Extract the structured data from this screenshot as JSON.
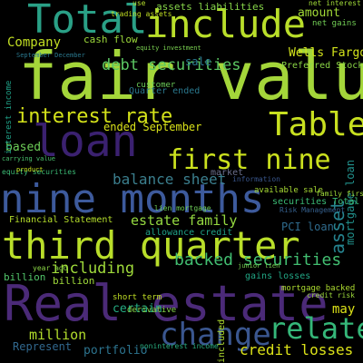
{
  "words": [
    {
      "id": "fair-value",
      "text": "fair value",
      "color": "#a4d63a"
    },
    {
      "id": "nine-months",
      "text": "nine months",
      "color": "#3d5a9c"
    },
    {
      "id": "real-estate",
      "text": "Real estate",
      "color": "#4b2a78"
    },
    {
      "id": "third-quarter",
      "text": "third quarter",
      "color": "#b9de2a"
    },
    {
      "id": "total",
      "text": "Total",
      "color": "#2aa086"
    },
    {
      "id": "include",
      "text": "include",
      "color": "#b9de2a"
    },
    {
      "id": "loan",
      "text": "loan",
      "color": "#3b2170"
    },
    {
      "id": "table",
      "text": "Table",
      "color": "#c8e020"
    },
    {
      "id": "first-nine",
      "text": "first nine",
      "color": "#cbe11e"
    },
    {
      "id": "change",
      "text": "change",
      "color": "#3a568f"
    },
    {
      "id": "related",
      "text": "related",
      "color": "#35b779"
    },
    {
      "id": "interest-rate",
      "text": "interest rate",
      "color": "#d4e21a"
    },
    {
      "id": "backed-securities",
      "text": "backed securities",
      "color": "#42be71"
    },
    {
      "id": "debt-securities",
      "text": "debt securities",
      "color": "#5cc863"
    },
    {
      "id": "balance-sheet",
      "text": "balance sheet",
      "color": "#3b7f8e"
    },
    {
      "id": "estate-family",
      "text": "estate family",
      "color": "#94d840"
    },
    {
      "id": "including",
      "text": "including",
      "color": "#9fda3a"
    },
    {
      "id": "credit-losses",
      "text": "credit losses",
      "color": "#dce319"
    },
    {
      "id": "million",
      "text": "million",
      "color": "#b2dd2c"
    },
    {
      "id": "portfolio",
      "text": "portfolio",
      "color": "#2c738e"
    },
    {
      "id": "company",
      "text": "Company",
      "color": "#c2df23"
    },
    {
      "id": "amount",
      "text": "amount",
      "color": "#a2da37"
    },
    {
      "id": "wells-fargo",
      "text": "Wells Fargo",
      "color": "#d2e21b"
    },
    {
      "id": "based",
      "text": "based",
      "color": "#6ece58"
    },
    {
      "id": "ended-september",
      "text": "ended September",
      "color": "#d9e219"
    },
    {
      "id": "financial-statement",
      "text": "Financial Statement",
      "color": "#b5de2b"
    },
    {
      "id": "assets-liabilities",
      "text": "assets liabilities",
      "color": "#86d549"
    },
    {
      "id": "cash-flow",
      "text": "cash flow",
      "color": "#9dd93b"
    },
    {
      "id": "preferred-stock",
      "text": "Preferred Stock",
      "color": "#8bd646"
    },
    {
      "id": "asset",
      "text": "asset",
      "color": "#26838f"
    },
    {
      "id": "certain",
      "text": "certain",
      "color": "#25ac82"
    },
    {
      "id": "pci-loan",
      "text": "PCI loan",
      "color": "#2f6c8e"
    },
    {
      "id": "may",
      "text": "may",
      "color": "#dde318"
    },
    {
      "id": "represent",
      "text": "Represent",
      "color": "#31688e"
    },
    {
      "id": "billion",
      "text": "billion",
      "color": "#52c569"
    },
    {
      "id": "billion-2",
      "text": "billion",
      "color": "#9fda3a"
    },
    {
      "id": "quarter-ended",
      "text": "Quarter ended",
      "color": "#2a788e"
    },
    {
      "id": "mortgage-loan",
      "text": "mortgage loan",
      "color": "#21918c"
    },
    {
      "id": "market",
      "text": "market",
      "color": "#6b6f8c"
    },
    {
      "id": "customer",
      "text": "customer",
      "color": "#6cce59"
    },
    {
      "id": "allowance-credit",
      "text": "allowance credit",
      "color": "#1fa187"
    },
    {
      "id": "securities-total",
      "text": "securities Total",
      "color": "#3bbb75"
    },
    {
      "id": "available-sale",
      "text": "available sale",
      "color": "#a8db34"
    },
    {
      "id": "gains-losses",
      "text": "gains losses",
      "color": "#22a785"
    },
    {
      "id": "credit-risk",
      "text": "credit risk",
      "color": "#9dd93b"
    },
    {
      "id": "derivative",
      "text": "derivative",
      "color": "#86d549"
    },
    {
      "id": "short-term",
      "text": "short term",
      "color": "#c0df25"
    },
    {
      "id": "included",
      "text": "included",
      "color": "#b0dd2f"
    },
    {
      "id": "year-ago",
      "text": "year ago",
      "color": "#8bd646"
    },
    {
      "id": "mortgage-backed",
      "text": "mortgage backed",
      "color": "#addc30"
    },
    {
      "id": "equity-securities",
      "text": "equity securities",
      "color": "#3bbb75"
    },
    {
      "id": "net-interest",
      "text": "net interest",
      "color": "#a0da39"
    },
    {
      "id": "interest-income",
      "text": "interest income",
      "color": "#1fa187"
    },
    {
      "id": "carrying-value",
      "text": "carrying value",
      "color": "#4ac16d"
    },
    {
      "id": "noninterest-income",
      "text": "noninterest income",
      "color": "#2ab07f"
    },
    {
      "id": "risk-management",
      "text": "Risk Management",
      "color": "#35608d"
    },
    {
      "id": "sale",
      "text": "sale",
      "color": "#2a788e"
    },
    {
      "id": "use",
      "text": "use",
      "color": "#b5de2b"
    },
    {
      "id": "product",
      "text": "product",
      "color": "#cae11f"
    },
    {
      "id": "information",
      "text": "information",
      "color": "#39568c"
    },
    {
      "id": "lien-mortgage",
      "text": "lien mortgage",
      "color": "#6ece58"
    },
    {
      "id": "september-december",
      "text": "September December",
      "color": "#2a788e"
    },
    {
      "id": "trading-assets",
      "text": "trading assets",
      "color": "#c2df23"
    },
    {
      "id": "net-gains",
      "text": "net gains",
      "color": "#73d056"
    },
    {
      "id": "equity-investment",
      "text": "equity investment",
      "color": "#7ad151"
    },
    {
      "id": "family-first",
      "text": "family first",
      "color": "#9fda3a"
    },
    {
      "id": "junior-lien",
      "text": "junior lien",
      "color": "#7ad151"
    }
  ]
}
